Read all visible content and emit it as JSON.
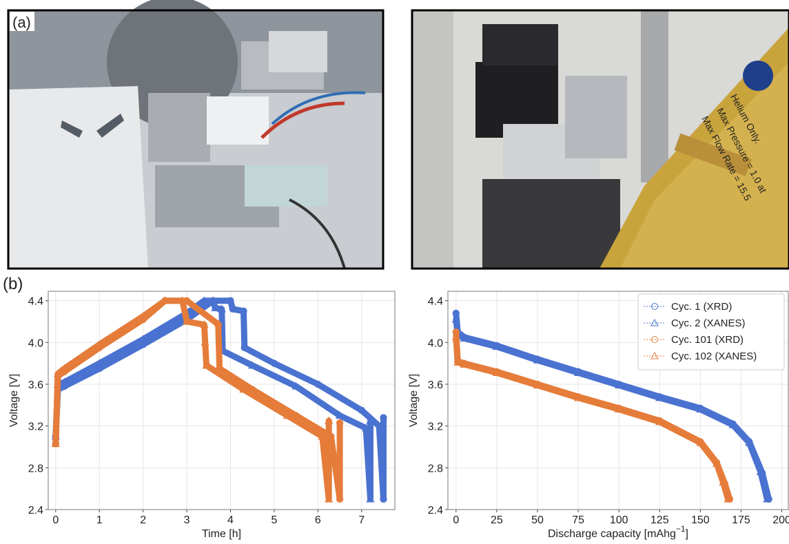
{
  "panel_labels": [
    "(a)",
    "(b)"
  ],
  "photo_text": [
    "Helium Only.",
    "Max Pressure = 1.0 at",
    "Max Flow Rate = 15.5"
  ],
  "chart_data": [
    {
      "type": "line",
      "xlabel": "Time [h]",
      "ylabel": "Voltage [V]",
      "xlim": [
        -0.17,
        7.76
      ],
      "ylim": [
        2.4,
        4.49
      ],
      "xticks": [
        0,
        1,
        2,
        3,
        4,
        5,
        6,
        7
      ],
      "yticks": [
        2.4,
        2.8,
        3.2,
        3.6,
        {
          "value": 4,
          "label": "4.0"
        },
        4.4
      ],
      "grid": true,
      "series": [
        {
          "color": "#4a72d0",
          "marker": "circle",
          "x": [
            0,
            0.05,
            0.2,
            1,
            2,
            3,
            3.6,
            4.0,
            4.05,
            4.3,
            4.32,
            5,
            6,
            7,
            7.4,
            7.5,
            7.5
          ],
          "values": [
            3.1,
            3.55,
            3.58,
            3.75,
            3.98,
            4.22,
            4.4,
            4.4,
            4.32,
            4.3,
            3.95,
            3.8,
            3.6,
            3.35,
            3.2,
            2.5,
            3.28
          ]
        },
        {
          "color": "#4a72d0",
          "marker": "triangle",
          "x": [
            0,
            0.05,
            0.2,
            1,
            2,
            3,
            3.4,
            3.6,
            3.65,
            3.8,
            3.82,
            4.5,
            5.5,
            6.5,
            7.1,
            7.2,
            7.2
          ],
          "values": [
            3.1,
            3.6,
            3.62,
            3.8,
            4.03,
            4.28,
            4.4,
            4.4,
            4.33,
            4.32,
            3.92,
            3.78,
            3.58,
            3.3,
            3.18,
            2.5,
            3.25
          ]
        },
        {
          "color": "#e57c3a",
          "marker": "circle",
          "x": [
            0,
            0.05,
            0.2,
            1,
            2,
            2.5,
            3.0,
            3.7,
            3.72,
            3.75,
            4.5,
            5.5,
            6.3,
            6.5,
            6.5
          ],
          "values": [
            3.03,
            3.68,
            3.72,
            3.95,
            4.22,
            4.4,
            4.4,
            4.18,
            4.17,
            3.75,
            3.55,
            3.3,
            3.1,
            2.5,
            3.23
          ]
        },
        {
          "color": "#e57c3a",
          "marker": "triangle",
          "x": [
            0,
            0.05,
            0.2,
            1,
            2,
            2.5,
            2.9,
            3.0,
            3.4,
            3.42,
            3.45,
            4.3,
            5.3,
            6.1,
            6.25,
            6.25
          ],
          "values": [
            3.03,
            3.7,
            3.75,
            3.98,
            4.25,
            4.4,
            4.4,
            4.2,
            4.17,
            4.0,
            3.78,
            3.55,
            3.3,
            3.1,
            2.5,
            3.25
          ]
        }
      ]
    },
    {
      "type": "line",
      "xlabel": "Discharge capacity [mAhg",
      "xlabel_sup": "−1",
      "xlabel_end": "]",
      "ylabel": "Voltage [V]",
      "xlim": [
        -5,
        204
      ],
      "ylim": [
        2.4,
        4.49
      ],
      "xticks": [
        0,
        25,
        50,
        75,
        100,
        125,
        150,
        175,
        200
      ],
      "yticks": [
        2.4,
        2.8,
        3.2,
        3.6,
        {
          "value": 4,
          "label": "4.0"
        },
        4.4
      ],
      "grid": true,
      "legend": "upper right",
      "series": [
        {
          "name": "Cyc. 1 (XRD)",
          "color": "#4a72d0",
          "marker": "circle",
          "x": [
            0,
            1,
            5,
            25,
            50,
            75,
            100,
            125,
            150,
            170,
            180,
            188,
            192
          ],
          "values": [
            4.28,
            4.1,
            4.05,
            3.97,
            3.84,
            3.72,
            3.6,
            3.48,
            3.37,
            3.22,
            3.05,
            2.75,
            2.5
          ]
        },
        {
          "name": "Cyc. 2 (XANES)",
          "color": "#4a72d0",
          "marker": "triangle",
          "x": [
            0,
            1,
            5,
            25,
            50,
            75,
            100,
            125,
            150,
            170,
            180,
            187,
            191
          ],
          "values": [
            4.22,
            4.08,
            4.04,
            3.96,
            3.83,
            3.71,
            3.59,
            3.47,
            3.36,
            3.21,
            3.04,
            2.76,
            2.5
          ]
        },
        {
          "name": "Cyc. 101 (XRD)",
          "color": "#e57c3a",
          "marker": "circle",
          "x": [
            0,
            1,
            5,
            25,
            50,
            75,
            100,
            125,
            150,
            160,
            165,
            168
          ],
          "values": [
            4.1,
            3.82,
            3.8,
            3.72,
            3.6,
            3.48,
            3.37,
            3.25,
            3.05,
            2.85,
            2.65,
            2.5
          ]
        },
        {
          "name": "Cyc. 102 (XANES)",
          "color": "#e57c3a",
          "marker": "triangle",
          "x": [
            0,
            1,
            5,
            25,
            50,
            75,
            100,
            125,
            150,
            160,
            164,
            167
          ],
          "values": [
            4.05,
            3.81,
            3.79,
            3.71,
            3.59,
            3.47,
            3.36,
            3.24,
            3.04,
            2.84,
            2.66,
            2.5
          ]
        }
      ]
    }
  ]
}
